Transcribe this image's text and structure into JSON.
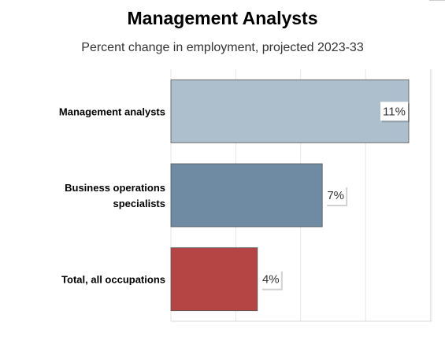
{
  "chart_data": {
    "type": "bar",
    "orientation": "horizontal",
    "title": "Management Analysts",
    "subtitle": "Percent change in employment, projected 2023-33",
    "categories": [
      [
        "Management analysts"
      ],
      [
        "Business operations",
        "specialists"
      ],
      [
        "Total, all occupations"
      ]
    ],
    "values": [
      11,
      7,
      4
    ],
    "value_labels": [
      "11%",
      "7%",
      "4%"
    ],
    "colors": [
      "#adbfcc",
      "#6f8ba3",
      "#b54545"
    ],
    "xlim": [
      0,
      12
    ],
    "grid": true,
    "legend": "none"
  }
}
